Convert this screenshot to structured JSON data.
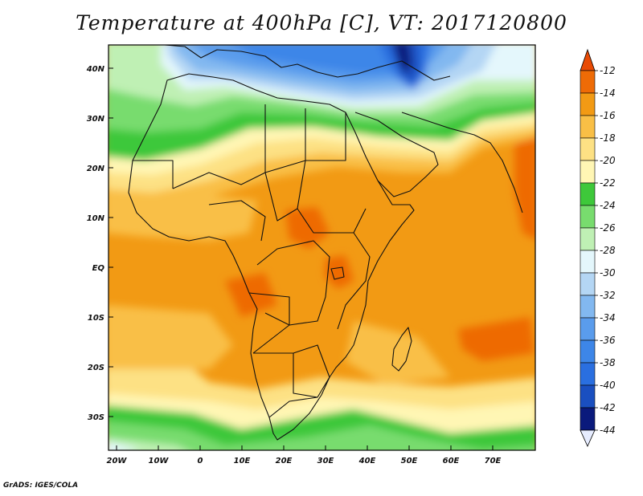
{
  "title": "Temperature at 400hPa [C], VT: 2017120800",
  "credit": "GrADS: IGES/COLA",
  "map": {
    "region": "Africa",
    "lon_range": [
      -22,
      80
    ],
    "lat_range": [
      -37,
      45
    ],
    "lat_labels": [
      "40N",
      "30N",
      "20N",
      "10N",
      "EQ",
      "10S",
      "20S",
      "30S"
    ],
    "lon_labels": [
      "20W",
      "10W",
      "0",
      "10E",
      "20E",
      "30E",
      "40E",
      "50E",
      "60E",
      "70E"
    ]
  },
  "colorbar": {
    "labels": [
      "-12",
      "-14",
      "-16",
      "-18",
      "-20",
      "-22",
      "-24",
      "-26",
      "-28",
      "-30",
      "-32",
      "-34",
      "-36",
      "-38",
      "-40",
      "-42",
      "-44"
    ],
    "colors": [
      "#e6ecff",
      "#0a1a7c",
      "#1a4fc0",
      "#2a6fe0",
      "#3d86e8",
      "#5a9cec",
      "#82b8f0",
      "#b4d6f4",
      "#e4f7fc",
      "#bff0b4",
      "#78dc6e",
      "#3ec83a",
      "#fff6b4",
      "#fde184",
      "#f9bf46",
      "#f29a14",
      "#ee6b06",
      "#e84a04"
    ]
  }
}
